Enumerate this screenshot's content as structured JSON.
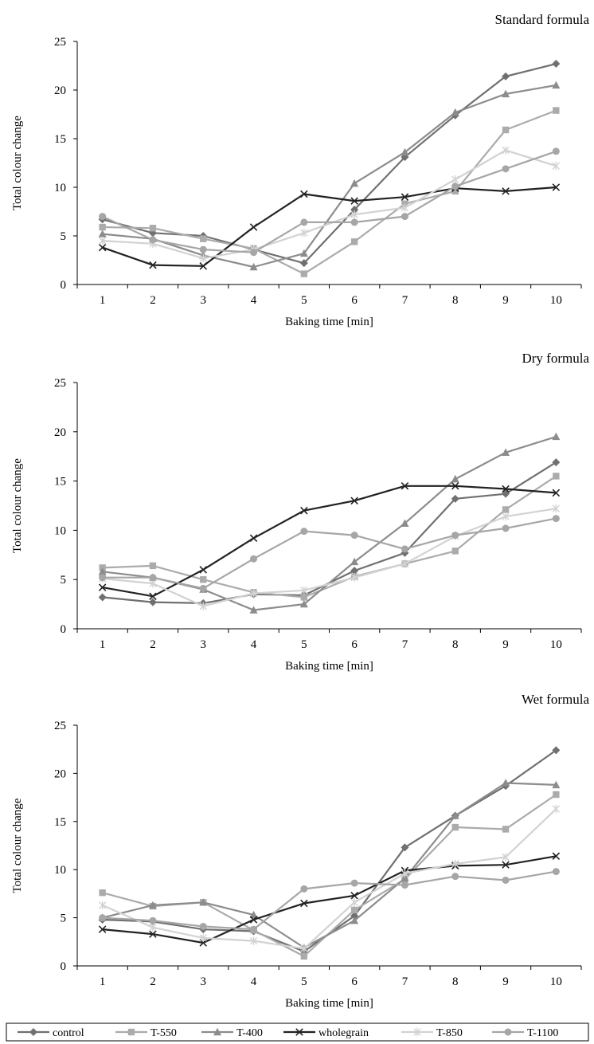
{
  "chart_data": [
    {
      "type": "line",
      "title": "Standard formula",
      "xlabel": "Baking time [min]",
      "ylabel": "Total colour change",
      "categories": [
        "1",
        "2",
        "3",
        "4",
        "5",
        "6",
        "7",
        "8",
        "9",
        "10"
      ],
      "ylim": [
        0,
        25
      ],
      "yticks": [
        "0",
        "5",
        "10",
        "15",
        "20",
        "25"
      ],
      "grid": false,
      "series": [
        {
          "name": "control",
          "values": [
            6.7,
            5.3,
            5.0,
            3.6,
            2.2,
            7.7,
            13.1,
            17.4,
            21.4,
            22.7
          ]
        },
        {
          "name": "T-550",
          "values": [
            5.9,
            5.8,
            4.7,
            3.7,
            1.1,
            4.4,
            8.3,
            9.6,
            15.9,
            17.9
          ]
        },
        {
          "name": "T-400",
          "values": [
            5.2,
            4.7,
            3.0,
            1.8,
            3.2,
            10.4,
            13.6,
            17.7,
            19.6,
            20.5
          ]
        },
        {
          "name": "wholegrain",
          "values": [
            3.8,
            2.0,
            1.9,
            5.9,
            9.3,
            8.6,
            9.0,
            9.9,
            9.6,
            10.0
          ]
        },
        {
          "name": "T-850",
          "values": [
            4.5,
            4.2,
            2.7,
            3.6,
            5.3,
            7.2,
            7.9,
            10.8,
            13.8,
            12.2
          ]
        },
        {
          "name": "T-1100",
          "values": [
            7.0,
            4.6,
            3.6,
            3.3,
            6.4,
            6.4,
            7.0,
            10.1,
            11.9,
            13.7
          ]
        }
      ]
    },
    {
      "type": "line",
      "title": "Dry formula",
      "xlabel": "Baking time [min]",
      "ylabel": "Total colour change",
      "categories": [
        "1",
        "2",
        "3",
        "4",
        "5",
        "6",
        "7",
        "8",
        "9",
        "10"
      ],
      "ylim": [
        0,
        25
      ],
      "yticks": [
        "0",
        "5",
        "10",
        "15",
        "20",
        "25"
      ],
      "grid": false,
      "series": [
        {
          "name": "control",
          "values": [
            3.2,
            2.7,
            2.6,
            3.5,
            3.4,
            5.9,
            7.7,
            13.2,
            13.7,
            16.9
          ]
        },
        {
          "name": "T-550",
          "values": [
            6.2,
            6.4,
            5.0,
            3.7,
            3.2,
            5.3,
            6.6,
            7.9,
            12.1,
            15.5
          ]
        },
        {
          "name": "T-400",
          "values": [
            5.8,
            5.2,
            4.0,
            1.9,
            2.5,
            6.8,
            10.7,
            15.2,
            17.9,
            19.5
          ]
        },
        {
          "name": "wholegrain",
          "values": [
            4.2,
            3.3,
            6.0,
            9.2,
            12.0,
            13.0,
            14.5,
            14.5,
            14.2,
            13.8
          ]
        },
        {
          "name": "T-850",
          "values": [
            5.1,
            4.6,
            2.3,
            3.6,
            3.9,
            5.2,
            6.6,
            9.4,
            11.4,
            12.2
          ]
        },
        {
          "name": "T-1100",
          "values": [
            5.2,
            5.2,
            4.1,
            7.1,
            9.9,
            9.5,
            8.1,
            9.5,
            10.2,
            11.2
          ]
        }
      ]
    },
    {
      "type": "line",
      "title": "Wet formula",
      "xlabel": "Baking time [min]",
      "ylabel": "Total colour change",
      "categories": [
        "1",
        "2",
        "3",
        "4",
        "5",
        "6",
        "7",
        "8",
        "9",
        "10"
      ],
      "ylim": [
        0,
        25
      ],
      "yticks": [
        "0",
        "5",
        "10",
        "15",
        "20",
        "25"
      ],
      "grid": false,
      "series": [
        {
          "name": "control",
          "values": [
            4.8,
            4.6,
            3.8,
            3.6,
            1.5,
            5.2,
            12.3,
            15.6,
            18.7,
            22.4
          ]
        },
        {
          "name": "T-550",
          "values": [
            7.6,
            6.2,
            6.6,
            3.7,
            1.0,
            5.8,
            9.0,
            14.4,
            14.2,
            17.8
          ]
        },
        {
          "name": "T-400",
          "values": [
            5.0,
            6.3,
            6.6,
            5.3,
            1.9,
            4.7,
            9.1,
            15.6,
            19.0,
            18.8
          ]
        },
        {
          "name": "wholegrain",
          "values": [
            3.8,
            3.3,
            2.4,
            4.8,
            6.5,
            7.3,
            9.9,
            10.4,
            10.5,
            11.4
          ]
        },
        {
          "name": "T-850",
          "values": [
            6.3,
            4.0,
            2.9,
            2.6,
            1.8,
            6.6,
            9.6,
            10.6,
            11.3,
            16.3
          ]
        },
        {
          "name": "T-1100",
          "values": [
            5.0,
            4.7,
            4.1,
            3.8,
            8.0,
            8.6,
            8.4,
            9.3,
            8.9,
            9.8
          ]
        }
      ]
    }
  ],
  "series_styles": [
    {
      "name": "control",
      "color": "#707070",
      "marker": "diamond"
    },
    {
      "name": "T-550",
      "color": "#ababab",
      "marker": "square"
    },
    {
      "name": "T-400",
      "color": "#8c8c8c",
      "marker": "triangle"
    },
    {
      "name": "wholegrain",
      "color": "#222222",
      "marker": "x"
    },
    {
      "name": "T-850",
      "color": "#d2d2d2",
      "marker": "star"
    },
    {
      "name": "T-1100",
      "color": "#a6a6a6",
      "marker": "circle"
    }
  ],
  "legend": {
    "position": "bottom",
    "items": [
      "control",
      "T-550",
      "T-400",
      "wholegrain",
      "T-850",
      "T-1100"
    ]
  }
}
